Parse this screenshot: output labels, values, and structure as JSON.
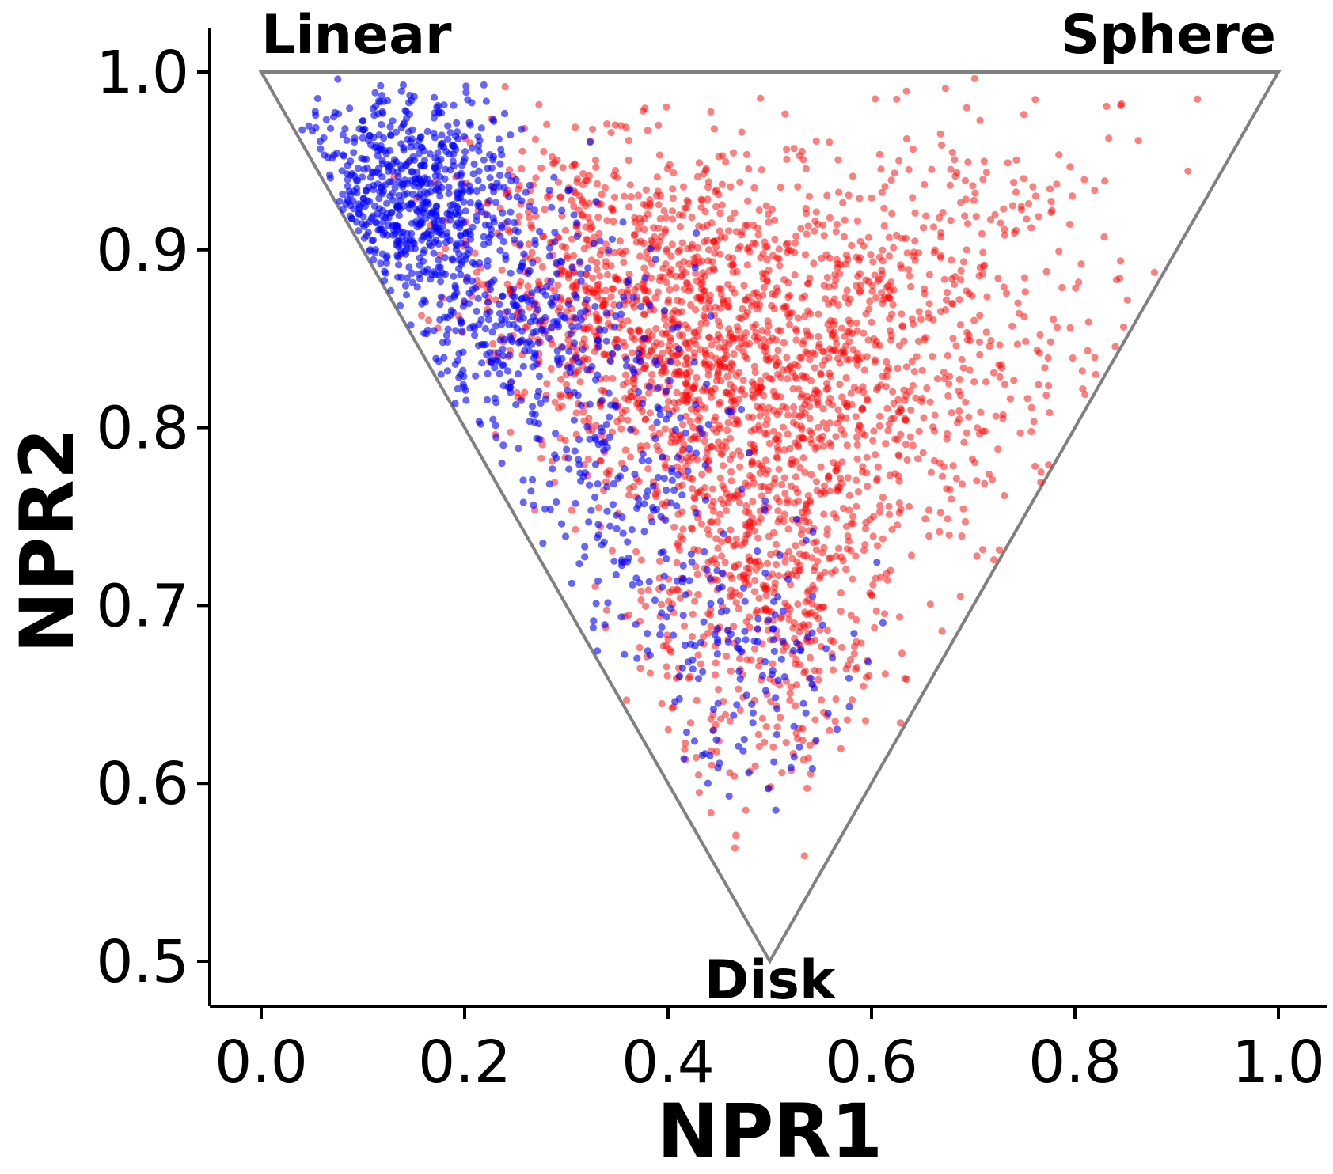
{
  "chart_data": {
    "type": "scatter",
    "title": "",
    "xlabel": "NPR1",
    "ylabel": "NPR2",
    "xlim": [
      -0.05,
      1.05
    ],
    "ylim": [
      0.475,
      1.025
    ],
    "xticks": [
      0.0,
      0.2,
      0.4,
      0.6,
      0.8,
      1.0
    ],
    "xtick_labels": [
      "0.0",
      "0.2",
      "0.4",
      "0.6",
      "0.8",
      "1.0"
    ],
    "yticks": [
      0.5,
      0.6,
      0.7,
      0.8,
      0.9,
      1.0
    ],
    "ytick_labels": [
      "0.5",
      "0.6",
      "0.7",
      "0.8",
      "0.9",
      "1.0"
    ],
    "grid": false,
    "legend": "none",
    "boundary_triangle": {
      "color": "#808080",
      "vertices": [
        {
          "label": "Linear",
          "x": 0.0,
          "y": 1.0
        },
        {
          "label": "Sphere",
          "x": 1.0,
          "y": 1.0
        },
        {
          "label": "Disk",
          "x": 0.5,
          "y": 0.5
        }
      ]
    },
    "series": [
      {
        "color": "#ff0000",
        "opacity": 0.5,
        "distribution": "dense cloud spanning the interior of the triangle, concentrated near NPR1 0.35–0.55, NPR2 0.72–0.92, sparser toward the Sphere corner and the Disk vertex",
        "centers": [
          {
            "x": 0.4,
            "y": 0.86,
            "sx": 0.07,
            "sy": 0.045,
            "w": 0.22
          },
          {
            "x": 0.48,
            "y": 0.79,
            "sx": 0.08,
            "sy": 0.06,
            "w": 0.24
          },
          {
            "x": 0.58,
            "y": 0.82,
            "sx": 0.09,
            "sy": 0.07,
            "w": 0.18
          },
          {
            "x": 0.5,
            "y": 0.68,
            "sx": 0.06,
            "sy": 0.05,
            "w": 0.12
          },
          {
            "x": 0.3,
            "y": 0.9,
            "sx": 0.07,
            "sy": 0.04,
            "w": 0.12
          },
          {
            "x": 0.7,
            "y": 0.88,
            "sx": 0.1,
            "sy": 0.06,
            "w": 0.12
          }
        ],
        "approx_count": 9000
      },
      {
        "color": "#0000ff",
        "opacity": 0.6,
        "distribution": "concentrated along the Linear–Disk edge, densest near NPR1 0.10–0.25, NPR2 0.88–0.98, thinning out toward NPR1 0.5",
        "centers": [
          {
            "x": 0.14,
            "y": 0.93,
            "sx": 0.05,
            "sy": 0.03,
            "w": 0.45
          },
          {
            "x": 0.24,
            "y": 0.86,
            "sx": 0.06,
            "sy": 0.04,
            "w": 0.3
          },
          {
            "x": 0.36,
            "y": 0.77,
            "sx": 0.06,
            "sy": 0.05,
            "w": 0.15
          },
          {
            "x": 0.48,
            "y": 0.67,
            "sx": 0.05,
            "sy": 0.04,
            "w": 0.1
          }
        ],
        "approx_count": 3400
      }
    ]
  }
}
